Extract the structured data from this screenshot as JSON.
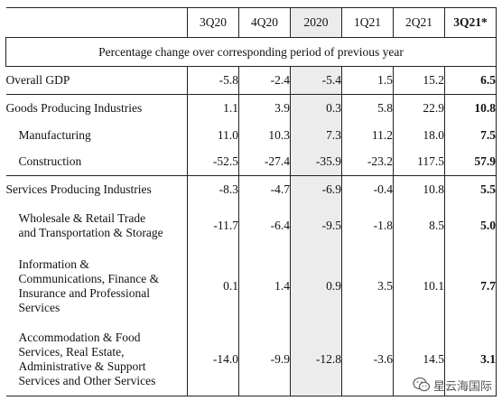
{
  "columns": [
    "3Q20",
    "4Q20",
    "2020",
    "1Q21",
    "2Q21",
    "3Q21*"
  ],
  "subheader": "Percentage change over corresponding period of previous year",
  "rows": [
    {
      "label": "Overall GDP",
      "values": [
        "-5.8",
        "-2.4",
        "-5.4",
        "1.5",
        "15.2",
        "6.5"
      ]
    },
    {
      "label": "Goods Producing Industries",
      "values": [
        "1.1",
        "3.9",
        "0.3",
        "5.8",
        "22.9",
        "10.8"
      ]
    },
    {
      "label": "Manufacturing",
      "values": [
        "11.0",
        "10.3",
        "7.3",
        "11.2",
        "18.0",
        "7.5"
      ]
    },
    {
      "label": "Construction",
      "values": [
        "-52.5",
        "-27.4",
        "-35.9",
        "-23.2",
        "117.5",
        "57.9"
      ]
    },
    {
      "label": "Services Producing Industries",
      "values": [
        "-8.3",
        "-4.7",
        "-6.9",
        "-0.4",
        "10.8",
        "5.5"
      ]
    },
    {
      "label_lines": [
        "Wholesale & Retail Trade",
        "and Transportation & Storage"
      ],
      "values": [
        "-11.7",
        "-6.4",
        "-9.5",
        "-1.8",
        "8.5",
        "5.0"
      ]
    },
    {
      "label_lines": [
        "Information &",
        "Communications, Finance &",
        "Insurance and Professional",
        "Services"
      ],
      "values": [
        "0.1",
        "1.4",
        "0.9",
        "3.5",
        "10.1",
        "7.7"
      ]
    },
    {
      "label_lines": [
        "Accommodation & Food",
        "Services, Real Estate,",
        "Administrative & Support",
        "Services and Other Services"
      ],
      "values": [
        "-14.0",
        "-9.9",
        "-12.8",
        "-3.6",
        "14.5",
        "3.1"
      ]
    }
  ],
  "watermark": {
    "text": "星云海国际",
    "icon": "wechat-icon"
  }
}
